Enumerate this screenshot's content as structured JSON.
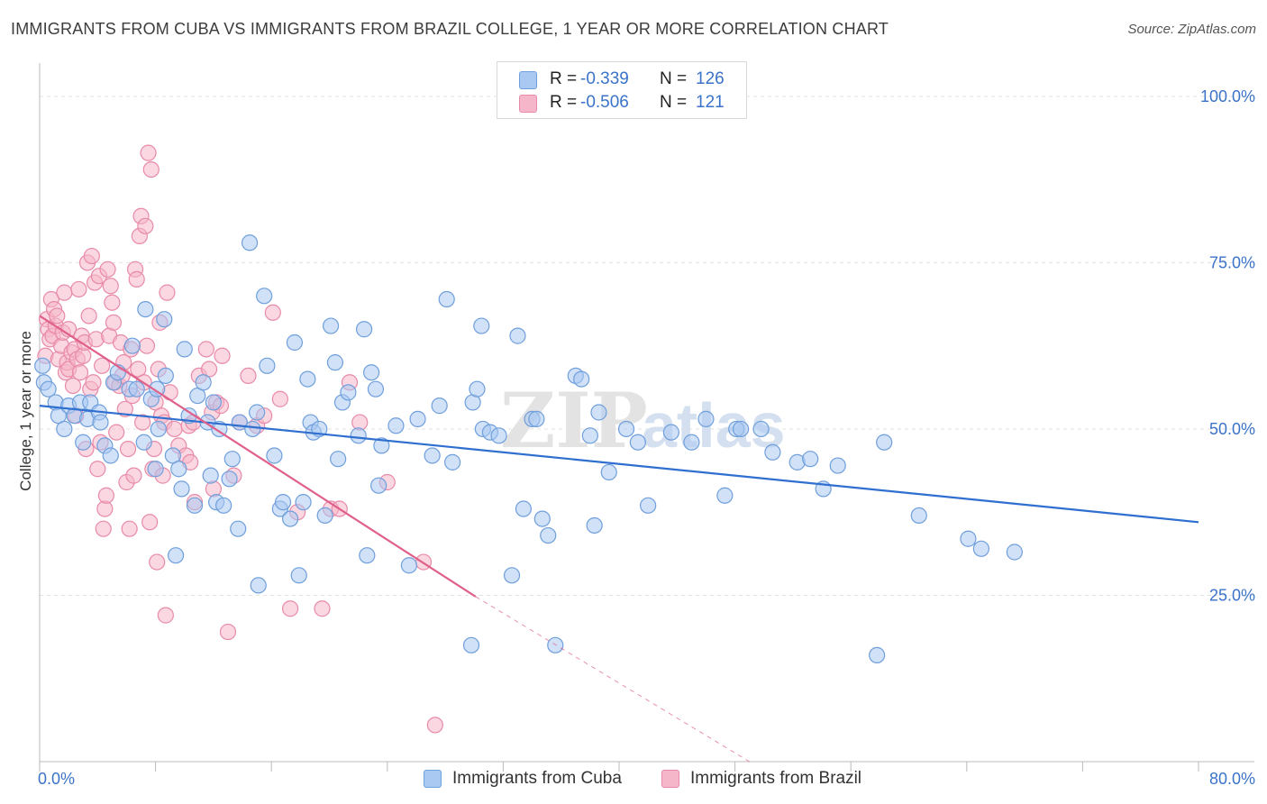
{
  "header": {
    "title": "IMMIGRANTS FROM CUBA VS IMMIGRANTS FROM BRAZIL COLLEGE, 1 YEAR OR MORE CORRELATION CHART",
    "source": "Source: ZipAtlas.com"
  },
  "legend": {
    "cuba": {
      "r_label": "R =",
      "r_value": "-0.339",
      "n_label": "N =",
      "n_value": "126"
    },
    "brazil": {
      "r_label": "R =",
      "r_value": "-0.506",
      "n_label": "N =",
      "n_value": "121"
    }
  },
  "watermark": {
    "part1": "ZIP",
    "part2": "atlas"
  },
  "colors": {
    "cuba_fill": "#a9c8f2",
    "cuba_stroke": "#6f9fdc",
    "cuba_line": "#2f6fcf",
    "brazil_fill": "#f6b6c9",
    "brazil_stroke": "#e88aa9",
    "brazil_line": "#e0608a",
    "axis_label": "#3b73c9"
  },
  "chart_data": {
    "type": "scatter",
    "title": "IMMIGRANTS FROM CUBA VS IMMIGRANTS FROM BRAZIL COLLEGE, 1 YEAR OR MORE CORRELATION CHART",
    "xlabel": "",
    "ylabel": "College, 1 year or more",
    "xlim": [
      0,
      80
    ],
    "ylim": [
      0,
      105
    ],
    "x_tick_labels": [
      "0.0%",
      "80.0%"
    ],
    "y_ticks": [
      25,
      50,
      75,
      100
    ],
    "y_tick_labels": [
      "25.0%",
      "50.0%",
      "75.0%",
      "100.0%"
    ],
    "grid": true,
    "legend_position": "top-center",
    "series": [
      {
        "name": "Immigrants from Cuba",
        "color": "#a9c8f2",
        "points": [
          [
            0.2,
            59.5
          ],
          [
            0.3,
            57
          ],
          [
            0.6,
            56
          ],
          [
            1.1,
            54
          ],
          [
            1.3,
            52
          ],
          [
            1.7,
            50
          ],
          [
            2.0,
            53.5
          ],
          [
            2.4,
            52
          ],
          [
            2.8,
            54
          ],
          [
            3.0,
            48
          ],
          [
            3.3,
            51.5
          ],
          [
            3.5,
            54
          ],
          [
            4.1,
            52.5
          ],
          [
            4.2,
            51
          ],
          [
            4.5,
            47.5
          ],
          [
            4.9,
            46
          ],
          [
            5.1,
            57
          ],
          [
            5.4,
            58.5
          ],
          [
            6.2,
            56
          ],
          [
            6.4,
            62.5
          ],
          [
            6.7,
            56
          ],
          [
            7.2,
            48
          ],
          [
            7.7,
            54.5
          ],
          [
            7.3,
            68
          ],
          [
            8.0,
            44
          ],
          [
            8.1,
            56
          ],
          [
            8.2,
            50
          ],
          [
            8.6,
            66.5
          ],
          [
            8.7,
            58
          ],
          [
            9.4,
            31
          ],
          [
            9.2,
            46
          ],
          [
            9.6,
            44
          ],
          [
            9.8,
            41
          ],
          [
            10.0,
            62
          ],
          [
            10.3,
            52
          ],
          [
            10.7,
            38.5
          ],
          [
            10.9,
            55
          ],
          [
            11.3,
            57
          ],
          [
            11.6,
            51
          ],
          [
            11.8,
            43
          ],
          [
            12.0,
            54
          ],
          [
            12.2,
            39
          ],
          [
            12.4,
            50
          ],
          [
            12.7,
            38.5
          ],
          [
            13.1,
            42.5
          ],
          [
            13.3,
            45.5
          ],
          [
            13.7,
            35
          ],
          [
            13.8,
            51
          ],
          [
            14.5,
            78
          ],
          [
            14.7,
            50
          ],
          [
            15.0,
            52.5
          ],
          [
            15.1,
            26.5
          ],
          [
            15.5,
            70
          ],
          [
            15.7,
            59.5
          ],
          [
            16.2,
            46
          ],
          [
            16.6,
            38
          ],
          [
            16.8,
            39
          ],
          [
            17.3,
            36.5
          ],
          [
            17.6,
            63
          ],
          [
            17.9,
            28
          ],
          [
            18.2,
            39
          ],
          [
            18.5,
            57.5
          ],
          [
            18.7,
            51
          ],
          [
            18.9,
            49.5
          ],
          [
            19.3,
            50
          ],
          [
            19.7,
            37
          ],
          [
            20.1,
            65.5
          ],
          [
            20.4,
            60
          ],
          [
            20.6,
            45.5
          ],
          [
            20.9,
            54
          ],
          [
            21.3,
            55.5
          ],
          [
            22.0,
            49
          ],
          [
            22.4,
            65
          ],
          [
            22.6,
            31
          ],
          [
            22.9,
            58.5
          ],
          [
            23.2,
            56
          ],
          [
            23.4,
            41.5
          ],
          [
            23.6,
            47.5
          ],
          [
            24.6,
            50.5
          ],
          [
            25.5,
            29.5
          ],
          [
            26.1,
            51.5
          ],
          [
            27.1,
            46
          ],
          [
            27.6,
            53.5
          ],
          [
            28.1,
            69.5
          ],
          [
            28.5,
            45
          ],
          [
            29.8,
            17.5
          ],
          [
            29.9,
            54
          ],
          [
            30.2,
            56
          ],
          [
            30.5,
            65.5
          ],
          [
            30.6,
            50
          ],
          [
            31.1,
            49.5
          ],
          [
            31.7,
            49
          ],
          [
            32.6,
            28
          ],
          [
            33.0,
            64
          ],
          [
            33.4,
            38
          ],
          [
            34.0,
            51.5
          ],
          [
            34.3,
            51.5
          ],
          [
            34.7,
            36.5
          ],
          [
            35.1,
            34
          ],
          [
            35.6,
            17.5
          ],
          [
            37.0,
            58
          ],
          [
            37.4,
            57.5
          ],
          [
            38.0,
            49
          ],
          [
            38.3,
            35.5
          ],
          [
            38.6,
            52.5
          ],
          [
            39.3,
            43.5
          ],
          [
            40.5,
            50
          ],
          [
            41.3,
            48
          ],
          [
            42.0,
            38.5
          ],
          [
            43.6,
            49.5
          ],
          [
            45.0,
            48
          ],
          [
            46.0,
            51.5
          ],
          [
            47.3,
            40
          ],
          [
            48.1,
            50
          ],
          [
            48.4,
            50
          ],
          [
            49.8,
            50
          ],
          [
            50.6,
            46.5
          ],
          [
            52.3,
            45
          ],
          [
            53.2,
            45.5
          ],
          [
            54.1,
            41
          ],
          [
            55.1,
            44.5
          ],
          [
            57.8,
            16
          ],
          [
            58.3,
            48
          ],
          [
            60.7,
            37
          ],
          [
            64.1,
            33.5
          ],
          [
            65.0,
            32
          ],
          [
            67.3,
            31.5
          ]
        ]
      },
      {
        "name": "Immigrants from Brazil",
        "color": "#f6b6c9",
        "points": [
          [
            0.4,
            61
          ],
          [
            0.5,
            66.5
          ],
          [
            0.6,
            65
          ],
          [
            0.7,
            63.5
          ],
          [
            0.8,
            69.5
          ],
          [
            0.9,
            64
          ],
          [
            1.0,
            68
          ],
          [
            1.1,
            65.5
          ],
          [
            1.2,
            67
          ],
          [
            1.3,
            60.5
          ],
          [
            1.5,
            62.5
          ],
          [
            1.6,
            64.5
          ],
          [
            1.7,
            70.5
          ],
          [
            1.8,
            58.5
          ],
          [
            1.9,
            60
          ],
          [
            2.0,
            59
          ],
          [
            2.0,
            65
          ],
          [
            2.2,
            61.5
          ],
          [
            2.3,
            56.5
          ],
          [
            2.4,
            62
          ],
          [
            2.5,
            52
          ],
          [
            2.6,
            60.5
          ],
          [
            2.7,
            71
          ],
          [
            2.8,
            58.5
          ],
          [
            2.9,
            64
          ],
          [
            3.0,
            61
          ],
          [
            3.1,
            63
          ],
          [
            3.2,
            47
          ],
          [
            3.3,
            75
          ],
          [
            3.4,
            67
          ],
          [
            3.5,
            56
          ],
          [
            3.6,
            76
          ],
          [
            3.7,
            57
          ],
          [
            3.8,
            72
          ],
          [
            3.9,
            63.5
          ],
          [
            4.0,
            44
          ],
          [
            4.1,
            73
          ],
          [
            4.2,
            48
          ],
          [
            4.3,
            59.5
          ],
          [
            4.4,
            35
          ],
          [
            4.5,
            38
          ],
          [
            4.6,
            40
          ],
          [
            4.7,
            74
          ],
          [
            4.8,
            64
          ],
          [
            4.9,
            71.5
          ],
          [
            5.0,
            69
          ],
          [
            5.1,
            66
          ],
          [
            5.2,
            57
          ],
          [
            5.3,
            49.5
          ],
          [
            5.5,
            56.5
          ],
          [
            5.6,
            63
          ],
          [
            5.7,
            58
          ],
          [
            5.8,
            60
          ],
          [
            5.9,
            53
          ],
          [
            6.0,
            42
          ],
          [
            6.1,
            47
          ],
          [
            6.2,
            35
          ],
          [
            6.3,
            62
          ],
          [
            6.4,
            55
          ],
          [
            6.5,
            43
          ],
          [
            6.6,
            74
          ],
          [
            6.7,
            72.5
          ],
          [
            6.8,
            59
          ],
          [
            6.9,
            79
          ],
          [
            7.0,
            82
          ],
          [
            7.1,
            51
          ],
          [
            7.2,
            57
          ],
          [
            7.3,
            80.5
          ],
          [
            7.4,
            62.5
          ],
          [
            7.5,
            91.5
          ],
          [
            7.6,
            36
          ],
          [
            7.7,
            89
          ],
          [
            7.8,
            44
          ],
          [
            7.9,
            47
          ],
          [
            8.0,
            54
          ],
          [
            8.1,
            30
          ],
          [
            8.2,
            59
          ],
          [
            8.3,
            66
          ],
          [
            8.4,
            52
          ],
          [
            8.5,
            43
          ],
          [
            8.6,
            51
          ],
          [
            8.7,
            22
          ],
          [
            8.8,
            70.5
          ],
          [
            9.0,
            55.5
          ],
          [
            9.3,
            50
          ],
          [
            9.6,
            47.5
          ],
          [
            10.1,
            46
          ],
          [
            10.3,
            50.5
          ],
          [
            10.4,
            45
          ],
          [
            10.6,
            51
          ],
          [
            10.7,
            39
          ],
          [
            11.0,
            58
          ],
          [
            11.5,
            62
          ],
          [
            11.7,
            59
          ],
          [
            11.9,
            52.5
          ],
          [
            12.0,
            41
          ],
          [
            12.2,
            54
          ],
          [
            12.5,
            53.5
          ],
          [
            12.6,
            61
          ],
          [
            13.0,
            19.5
          ],
          [
            13.4,
            43
          ],
          [
            13.8,
            51
          ],
          [
            14.4,
            58
          ],
          [
            15.0,
            50.5
          ],
          [
            15.5,
            52
          ],
          [
            16.1,
            67.5
          ],
          [
            16.6,
            54.5
          ],
          [
            17.3,
            23
          ],
          [
            17.8,
            37.5
          ],
          [
            19.5,
            23
          ],
          [
            20.1,
            38
          ],
          [
            20.7,
            38
          ],
          [
            21.4,
            57
          ],
          [
            22.1,
            51
          ],
          [
            24.0,
            42
          ],
          [
            27.3,
            5.5
          ],
          [
            26.5,
            30
          ]
        ]
      }
    ],
    "trend_lines": [
      {
        "series": "Immigrants from Cuba",
        "x": [
          0,
          80
        ],
        "y": [
          53.5,
          36
        ]
      },
      {
        "series": "Immigrants from Brazil",
        "x": [
          0,
          30.1
        ],
        "y": [
          67,
          24.8
        ],
        "dashed_extension_to": [
          49,
          0
        ]
      }
    ]
  },
  "bottom_legend": {
    "cuba_label": "Immigrants from Cuba",
    "brazil_label": "Immigrants from Brazil"
  }
}
